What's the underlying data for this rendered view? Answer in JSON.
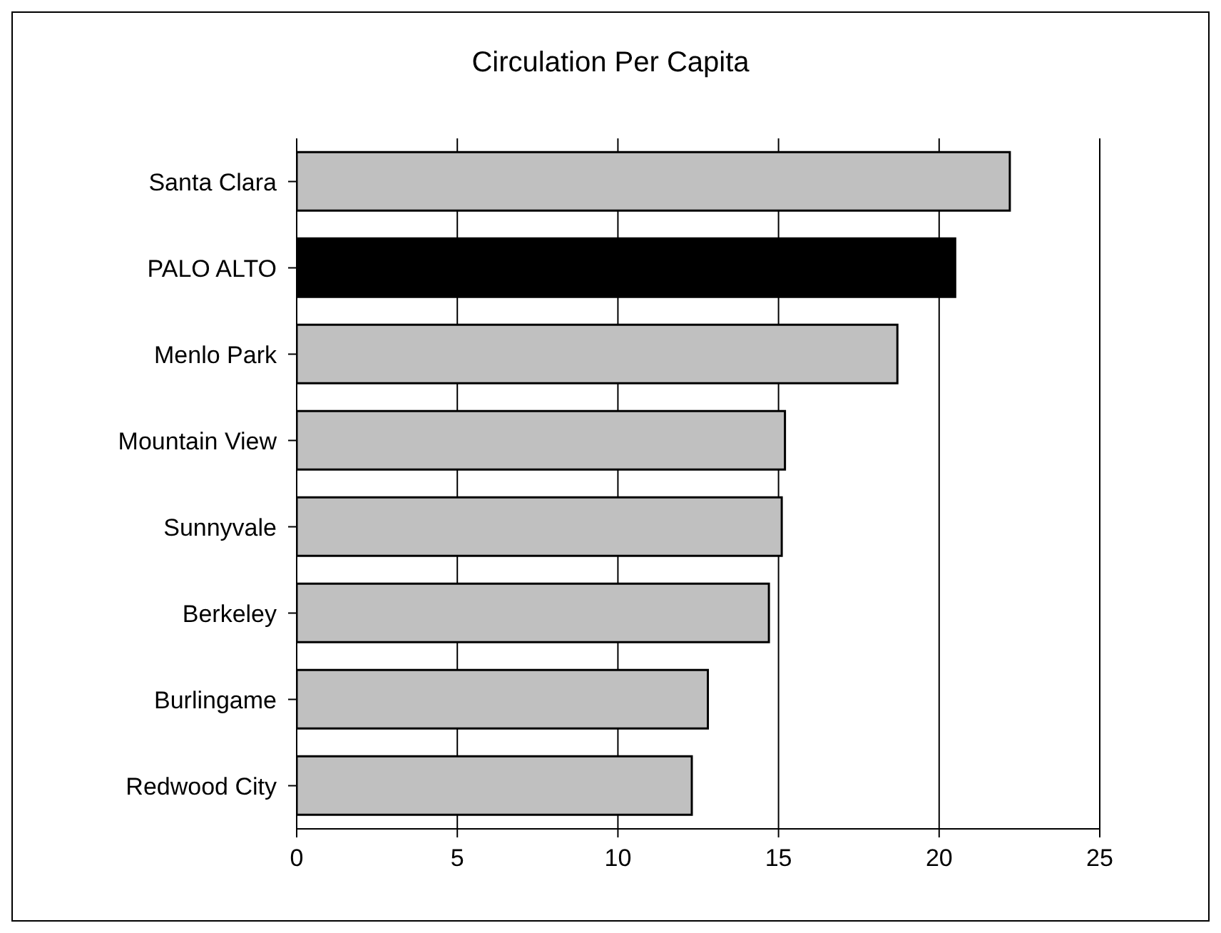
{
  "chart_data": {
    "type": "bar",
    "orientation": "horizontal",
    "title": "Circulation Per Capita",
    "categories": [
      "Santa Clara",
      "PALO ALTO",
      "Menlo Park",
      "Mountain View",
      "Sunnyvale",
      "Berkeley",
      "Burlingame",
      "Redwood City"
    ],
    "values": [
      22.2,
      20.5,
      18.7,
      15.2,
      15.1,
      14.7,
      12.8,
      12.3
    ],
    "colors": [
      "#c0c0c0",
      "#000000",
      "#c0c0c0",
      "#c0c0c0",
      "#c0c0c0",
      "#c0c0c0",
      "#c0c0c0",
      "#c0c0c0"
    ],
    "xlim": [
      0,
      25
    ],
    "xticks": [
      0,
      5,
      10,
      15,
      20,
      25
    ],
    "grid": "x"
  }
}
